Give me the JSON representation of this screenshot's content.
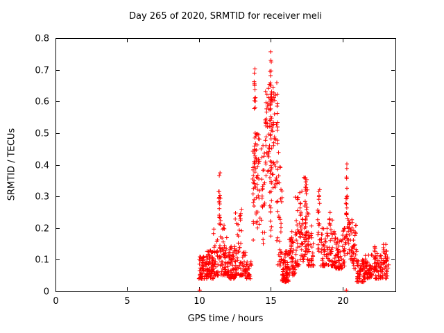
{
  "chart_data": {
    "type": "scatter",
    "title": "Day 265 of 2020, SRMTID for receiver meli",
    "xlabel": "GPS time / hours",
    "ylabel": "SRMTID / TECUs",
    "xlim": [
      0,
      23.7
    ],
    "ylim": [
      0,
      0.8
    ],
    "xticks": [
      0,
      5,
      10,
      15,
      20
    ],
    "yticks": [
      0,
      0.1,
      0.2,
      0.3,
      0.4,
      0.5,
      0.6,
      0.7,
      0.8
    ],
    "grid": false,
    "legend": "none",
    "marker": "plus",
    "seed": 7,
    "colors": {
      "marker": "#ff0000",
      "axis": "#000000",
      "background": "#ffffff"
    },
    "cluster_fields": [
      "t_start",
      "t_end",
      "count",
      "y_min",
      "y_max",
      "low_bias"
    ],
    "clusters": [
      [
        10.0,
        10.45,
        55,
        0.04,
        0.11,
        1.6
      ],
      [
        10.45,
        11.0,
        70,
        0.04,
        0.13,
        1.9
      ],
      [
        11.0,
        11.35,
        40,
        0.05,
        0.2,
        2.0
      ],
      [
        11.5,
        12.0,
        60,
        0.05,
        0.22,
        2.3
      ],
      [
        12.0,
        12.5,
        60,
        0.04,
        0.15,
        1.9
      ],
      [
        12.5,
        13.0,
        50,
        0.05,
        0.26,
        2.1
      ],
      [
        13.0,
        13.3,
        30,
        0.05,
        0.13,
        1.8
      ],
      [
        13.3,
        13.65,
        25,
        0.04,
        0.1,
        1.5
      ],
      [
        13.95,
        14.3,
        35,
        0.2,
        0.5,
        1.1
      ],
      [
        14.3,
        14.6,
        25,
        0.15,
        0.47,
        1.2
      ],
      [
        14.6,
        14.95,
        40,
        0.35,
        0.68,
        1.0
      ],
      [
        15.05,
        15.35,
        35,
        0.3,
        0.65,
        1.0
      ],
      [
        15.5,
        15.8,
        30,
        0.08,
        0.45,
        1.9
      ],
      [
        15.8,
        16.3,
        85,
        0.03,
        0.13,
        1.7
      ],
      [
        16.3,
        16.7,
        40,
        0.05,
        0.18,
        1.7
      ],
      [
        16.7,
        17.0,
        30,
        0.08,
        0.3,
        1.6
      ],
      [
        17.0,
        17.3,
        35,
        0.08,
        0.33,
        1.4
      ],
      [
        17.3,
        17.6,
        35,
        0.1,
        0.36,
        1.3
      ],
      [
        17.6,
        18.0,
        35,
        0.08,
        0.25,
        1.6
      ],
      [
        18.5,
        19.0,
        45,
        0.08,
        0.2,
        1.6
      ],
      [
        19.0,
        19.5,
        45,
        0.08,
        0.25,
        1.7
      ],
      [
        19.5,
        20.0,
        50,
        0.07,
        0.17,
        1.6
      ],
      [
        20.0,
        20.25,
        25,
        0.08,
        0.2,
        1.4
      ],
      [
        20.35,
        20.7,
        30,
        0.1,
        0.25,
        1.4
      ],
      [
        20.7,
        21.0,
        30,
        0.07,
        0.22,
        1.6
      ],
      [
        21.0,
        21.6,
        70,
        0.03,
        0.1,
        1.4
      ],
      [
        21.6,
        22.1,
        50,
        0.04,
        0.12,
        1.4
      ],
      [
        22.3,
        22.8,
        45,
        0.04,
        0.12,
        1.4
      ],
      [
        22.8,
        23.25,
        40,
        0.04,
        0.15,
        1.2
      ]
    ],
    "column_fields": [
      "t_center",
      "count",
      "y_min",
      "y_max",
      "t_width"
    ],
    "columns": [
      [
        11.45,
        25,
        0.1,
        0.41,
        0.15
      ],
      [
        13.8,
        18,
        0.15,
        0.45,
        0.12
      ],
      [
        13.9,
        28,
        0.3,
        0.75,
        0.1
      ],
      [
        15.0,
        45,
        0.17,
        0.76,
        0.12
      ],
      [
        15.45,
        22,
        0.15,
        0.68,
        0.1
      ],
      [
        16.45,
        10,
        0.08,
        0.21,
        0.08
      ],
      [
        17.45,
        15,
        0.12,
        0.35,
        0.1
      ],
      [
        18.35,
        20,
        0.12,
        0.33,
        0.15
      ],
      [
        20.3,
        22,
        0.15,
        0.42,
        0.1
      ],
      [
        22.25,
        16,
        0.06,
        0.16,
        0.1
      ]
    ],
    "isolated_points": [
      [
        10.05,
        0.004
      ],
      [
        20.28,
        0.004
      ]
    ]
  }
}
